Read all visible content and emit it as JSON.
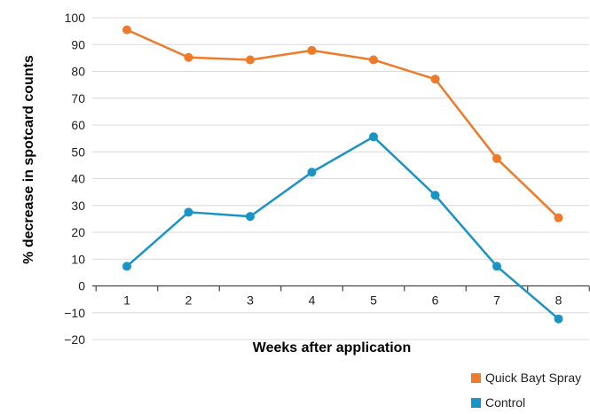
{
  "chart_data": {
    "type": "line",
    "x": [
      1,
      2,
      3,
      4,
      5,
      6,
      7,
      8
    ],
    "series": [
      {
        "name": "Quick Bayt Spray",
        "color": "#ef7b2a",
        "values": [
          95.5,
          85.2,
          84.3,
          87.8,
          84.3,
          77.1,
          47.5,
          25.4
        ]
      },
      {
        "name": "Control",
        "color": "#1a93c5",
        "values": [
          7.3,
          27.5,
          25.9,
          42.4,
          55.6,
          33.8,
          7.3,
          -12.3
        ]
      }
    ],
    "title": "",
    "xlabel": "Weeks after application",
    "ylabel": "% decrease in spotcard counts",
    "ylim": [
      -20,
      100
    ],
    "yticks": [
      100,
      90,
      80,
      70,
      60,
      50,
      40,
      30,
      20,
      10,
      0,
      -10,
      -20
    ],
    "grid": true,
    "legend_position": "bottom-right"
  }
}
